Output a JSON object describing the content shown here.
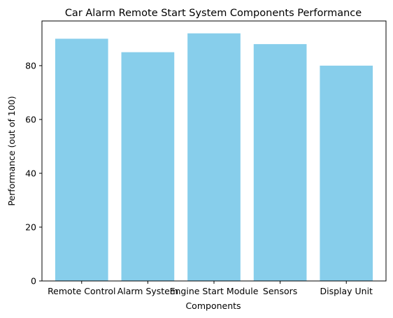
{
  "chart_data": {
    "type": "bar",
    "title": "Car Alarm Remote Start System Components Performance",
    "xlabel": "Components",
    "ylabel": "Performance (out of 100)",
    "categories": [
      "Remote Control",
      "Alarm System",
      "Engine Start Module",
      "Sensors",
      "Display Unit"
    ],
    "values": [
      90,
      85,
      92,
      88,
      80
    ],
    "ylim": [
      0,
      96.6
    ],
    "yticks": [
      0,
      20,
      40,
      60,
      80
    ],
    "bar_color": "#87CEEB",
    "grid": false,
    "legend": "none"
  }
}
